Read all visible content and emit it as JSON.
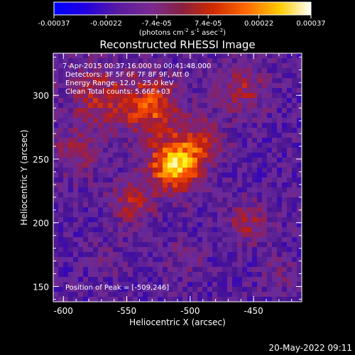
{
  "colorbar": {
    "ticks": [
      {
        "value": -0.00037,
        "label": "-0.00037"
      },
      {
        "value": -0.00022,
        "label": "-0.00022"
      },
      {
        "value": -7.4e-05,
        "label": "-7.4e-05"
      },
      {
        "value": 7.4e-05,
        "label": "7.4e-05"
      },
      {
        "value": 0.00022,
        "label": "0.00022"
      },
      {
        "value": 0.00037,
        "label": "0.00037"
      }
    ],
    "range": [
      -0.00037,
      0.00037
    ],
    "units": {
      "base": "(photons cm",
      "e1": "-2",
      "m1": " s",
      "e2": "-1",
      "m2": " asec",
      "e3": "-2",
      "end": ")"
    }
  },
  "title": "Reconstructed RHESSI Image",
  "annotations": {
    "time": "7-Apr-2015 00:37:16.000 to 00:41:48.000",
    "detectors": "Detectors: 3F 5F 6F 7F 8F 9F, Att 0",
    "energy": "Energy Range: 12.0 - 25.0 keV",
    "clean": "Clean    Total counts: 5.66E+03",
    "peak": "Position of Peak = [-509,246]"
  },
  "footer": {
    "timestamp": "20-May-2022 09:11"
  },
  "chart_data": {
    "type": "heatmap",
    "title": "Reconstructed RHESSI Image",
    "xlabel": "Heliocentric X (arcsec)",
    "ylabel": "Heliocentric Y (arcsec)",
    "xlim": [
      -608,
      -412
    ],
    "ylim": [
      138,
      333
    ],
    "x_ticks": [
      {
        "value": -600,
        "label": "-600"
      },
      {
        "value": -550,
        "label": "-550"
      },
      {
        "value": -500,
        "label": "-500"
      },
      {
        "value": -450,
        "label": "-450"
      }
    ],
    "y_ticks": [
      {
        "value": 150,
        "label": "150"
      },
      {
        "value": 200,
        "label": "200"
      },
      {
        "value": 250,
        "label": "250"
      },
      {
        "value": 300,
        "label": "300"
      }
    ],
    "peak_position": [
      -509,
      246
    ],
    "colormap": [
      "#0000ff",
      "#2a00d0",
      "#4a1590",
      "#6a2a9a",
      "#8a2060",
      "#c02010",
      "#ff5500",
      "#ffaa00",
      "#ffee00",
      "#ffffff"
    ]
  }
}
